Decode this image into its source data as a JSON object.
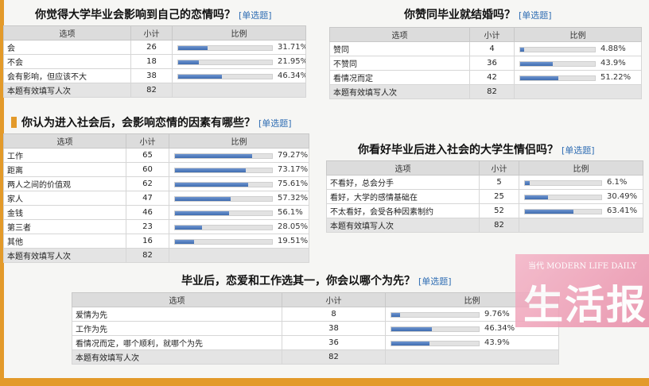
{
  "q1": {
    "title": "你觉得大学毕业会影响到自己的恋情吗？",
    "tag": "[单选题]",
    "headers": [
      "选项",
      "小计",
      "比例"
    ],
    "rows": [
      {
        "option": "会",
        "count": "26",
        "pct": "31.71%",
        "frac": 0.3171
      },
      {
        "option": "不会",
        "count": "18",
        "pct": "21.95%",
        "frac": 0.2195
      },
      {
        "option": "会有影响，但应该不大",
        "count": "38",
        "pct": "46.34%",
        "frac": 0.4634
      }
    ],
    "total_label": "本题有效填写人次",
    "total": "82"
  },
  "q2": {
    "title": "你赞同毕业就结婚吗？",
    "tag": "[单选题]",
    "headers": [
      "选项",
      "小计",
      "比例"
    ],
    "rows": [
      {
        "option": "赞同",
        "count": "4",
        "pct": "4.88%",
        "frac": 0.0488
      },
      {
        "option": "不赞同",
        "count": "36",
        "pct": "43.9%",
        "frac": 0.439
      },
      {
        "option": "看情况而定",
        "count": "42",
        "pct": "51.22%",
        "frac": 0.5122
      }
    ],
    "total_label": "本题有效填写人次",
    "total": "82"
  },
  "q3": {
    "title": "你认为进入社会后，会影响恋情的因素有哪些？",
    "tag": "[单选题]",
    "headers": [
      "选项",
      "小计",
      "比例"
    ],
    "rows": [
      {
        "option": "工作",
        "count": "65",
        "pct": "79.27%",
        "frac": 0.7927
      },
      {
        "option": "距离",
        "count": "60",
        "pct": "73.17%",
        "frac": 0.7317
      },
      {
        "option": "两人之间的价值观",
        "count": "62",
        "pct": "75.61%",
        "frac": 0.7561
      },
      {
        "option": "家人",
        "count": "47",
        "pct": "57.32%",
        "frac": 0.5732
      },
      {
        "option": "金钱",
        "count": "46",
        "pct": "56.1%",
        "frac": 0.561
      },
      {
        "option": "第三者",
        "count": "23",
        "pct": "28.05%",
        "frac": 0.2805
      },
      {
        "option": "其他",
        "count": "16",
        "pct": "19.51%",
        "frac": 0.1951
      }
    ],
    "total_label": "本题有效填写人次",
    "total": "82"
  },
  "q4": {
    "title": "你看好毕业后进入社会的大学生情侣吗？",
    "tag": "[单选题]",
    "headers": [
      "选项",
      "小计",
      "比例"
    ],
    "rows": [
      {
        "option": "不看好，总会分手",
        "count": "5",
        "pct": "6.1%",
        "frac": 0.061
      },
      {
        "option": "看好，大学的感情基础在",
        "count": "25",
        "pct": "30.49%",
        "frac": 0.3049
      },
      {
        "option": "不太看好，会受各种因素制约",
        "count": "52",
        "pct": "63.41%",
        "frac": 0.6341
      }
    ],
    "total_label": "本题有效填写人次",
    "total": "82"
  },
  "q5": {
    "title": "毕业后，恋爱和工作选其一，你会以哪个为先？",
    "tag": "[单选题]",
    "headers": [
      "选项",
      "小计",
      "比例"
    ],
    "rows": [
      {
        "option": "爱情为先",
        "count": "8",
        "pct": "9.76%",
        "frac": 0.0976
      },
      {
        "option": "工作为先",
        "count": "38",
        "pct": "46.34%",
        "frac": 0.4634
      },
      {
        "option": "看情况而定，哪个顺利，就哪个为先",
        "count": "36",
        "pct": "43.9%",
        "frac": 0.439
      }
    ],
    "total_label": "本题有效填写人次",
    "total": "82"
  },
  "logo": {
    "sub": "当代 MODERN LIFE DAILY",
    "main": "生活报"
  }
}
